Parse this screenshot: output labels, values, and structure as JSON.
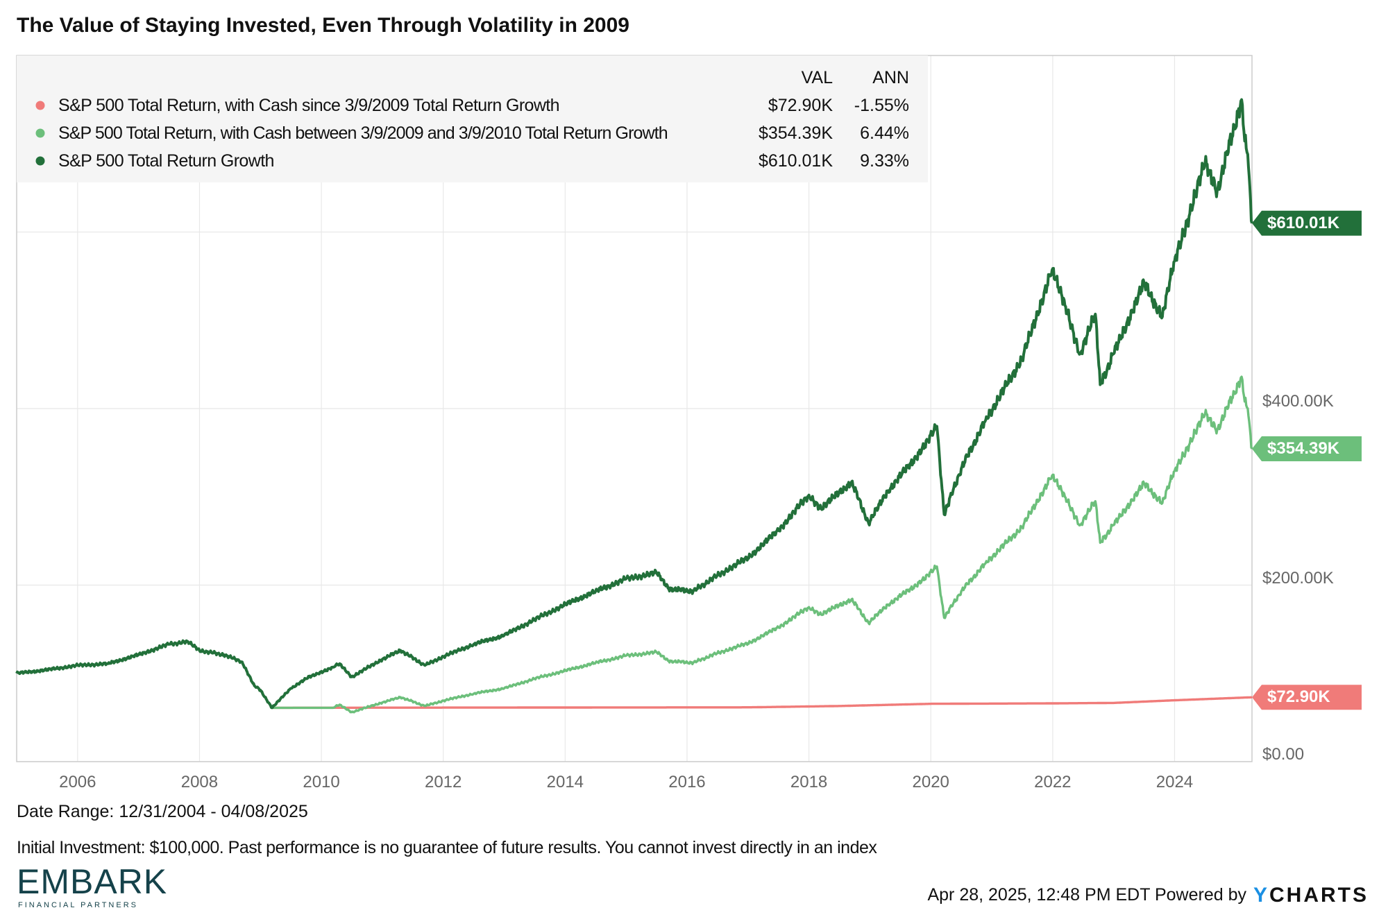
{
  "chart_data": {
    "type": "line",
    "title": "The Value of Staying Invested, Even Through Volatility in 2009",
    "legend": {
      "placement": "top-left",
      "columns": [
        "VAL",
        "ANN"
      ],
      "entries": [
        {
          "name": "S&P 500 Total Return, with Cash since 3/9/2009 Total Return Growth",
          "val": "$72.90K",
          "ann": "-1.55%",
          "color": "#f07b79"
        },
        {
          "name": "S&P 500 Total Return, with Cash between 3/9/2009 and 3/9/2010 Total Return Growth",
          "val": "$354.39K",
          "ann": "6.44%",
          "color": "#6cbf7b"
        },
        {
          "name": "S&P 500 Total Return Growth",
          "val": "$610.01K",
          "ann": "9.33%",
          "color": "#22703a"
        }
      ]
    },
    "x_ticks": [
      "2006",
      "2008",
      "2010",
      "2012",
      "2014",
      "2016",
      "2018",
      "2020",
      "2022",
      "2024"
    ],
    "y_ticks": [
      "$0.00",
      "$200.00K",
      "$400.00K"
    ],
    "xlim": [
      2005.0,
      2025.27
    ],
    "ylim": [
      0,
      800
    ],
    "y_unit": "thousands USD",
    "grid": true,
    "end_tags": [
      "$610.01K",
      "$354.39K",
      "$72.90K"
    ],
    "series": [
      {
        "name": "S&P 500 Total Return Growth",
        "color": "#22703a",
        "x": [
          2005.0,
          2005.5,
          2006.0,
          2006.5,
          2007.0,
          2007.5,
          2007.8,
          2008.0,
          2008.4,
          2008.7,
          2008.9,
          2009.0,
          2009.19,
          2009.5,
          2009.8,
          2010.19,
          2010.3,
          2010.5,
          2011.0,
          2011.3,
          2011.7,
          2012.0,
          2012.5,
          2013.0,
          2013.5,
          2014.0,
          2014.5,
          2015.0,
          2015.5,
          2015.7,
          2016.1,
          2016.5,
          2017.0,
          2017.5,
          2018.0,
          2018.2,
          2018.7,
          2018.98,
          2019.3,
          2019.9,
          2020.1,
          2020.22,
          2020.5,
          2020.9,
          2021.5,
          2021.99,
          2022.2,
          2022.45,
          2022.7,
          2022.78,
          2023.0,
          2023.5,
          2023.8,
          2024.0,
          2024.5,
          2024.7,
          2025.1,
          2025.15,
          2025.2,
          2025.27
        ],
        "y": [
          100,
          104,
          109,
          111,
          121,
          133,
          136,
          126,
          121,
          113,
          86,
          81,
          61,
          83,
          96,
          107,
          111,
          96,
          116,
          126,
          109,
          119,
          133,
          143,
          161,
          178,
          193,
          207,
          214,
          196,
          193,
          211,
          231,
          262,
          302,
          287,
          317,
          270,
          307,
          357,
          380,
          280,
          332,
          387,
          457,
          557,
          517,
          462,
          507,
          427,
          462,
          542,
          504,
          567,
          678,
          647,
          750,
          703,
          688,
          610.01
        ]
      },
      {
        "name": "S&P 500 Total Return, with Cash between 3/9/2009 and 3/9/2010 Total Return Growth",
        "color": "#6cbf7b",
        "x": [
          2005.0,
          2005.5,
          2006.0,
          2006.5,
          2007.0,
          2007.5,
          2007.8,
          2008.0,
          2008.4,
          2008.7,
          2008.9,
          2009.0,
          2009.19,
          2010.19,
          2010.3,
          2010.5,
          2011.0,
          2011.3,
          2011.7,
          2012.0,
          2012.5,
          2013.0,
          2013.5,
          2014.0,
          2014.5,
          2015.0,
          2015.5,
          2015.7,
          2016.1,
          2016.5,
          2017.0,
          2017.5,
          2018.0,
          2018.2,
          2018.7,
          2018.98,
          2019.3,
          2019.9,
          2020.1,
          2020.22,
          2020.5,
          2020.9,
          2021.5,
          2021.99,
          2022.2,
          2022.45,
          2022.7,
          2022.78,
          2023.0,
          2023.5,
          2023.8,
          2024.0,
          2024.5,
          2024.7,
          2025.1,
          2025.15,
          2025.2,
          2025.27
        ],
        "y": [
          100,
          104,
          109,
          111,
          121,
          133,
          136,
          126,
          121,
          113,
          86,
          81,
          61,
          61,
          64.5,
          56,
          67,
          73,
          63,
          69,
          77,
          83,
          94,
          103,
          112,
          120,
          124,
          114,
          112,
          123,
          134,
          152,
          175,
          167,
          184,
          157,
          178,
          207,
          221,
          163,
          193,
          225,
          266,
          324,
          300,
          268,
          295,
          248,
          268,
          315,
          293,
          329,
          394,
          376,
          436,
          408,
          400,
          354.39
        ]
      },
      {
        "name": "S&P 500 Total Return, with Cash since 3/9/2009 Total Return Growth",
        "color": "#f07b79",
        "x": [
          2005.0,
          2005.5,
          2006.0,
          2006.5,
          2007.0,
          2007.5,
          2007.8,
          2008.0,
          2008.4,
          2008.7,
          2008.9,
          2009.0,
          2009.19,
          2017.0,
          2018.5,
          2020.0,
          2022.0,
          2023.0,
          2024.0,
          2025.27
        ],
        "y": [
          100,
          104,
          109,
          111,
          121,
          133,
          136,
          126,
          121,
          113,
          86,
          81,
          61,
          61.5,
          63,
          65.5,
          66,
          66.5,
          69.5,
          72.9
        ]
      }
    ]
  },
  "footer": {
    "date_range": "Date Range: 12/31/2004 - 04/08/2025",
    "disclaimer": "Initial Investment: $100,000. Past performance is no guarantee of future results. You cannot invest directly in an index",
    "timestamp": "Apr 28, 2025, 12:48 PM EDT Powered by",
    "ycharts_logo": "YCHARTS",
    "embark_logo": "EMBARK",
    "embark_sub": "FINANCIAL PARTNERS"
  }
}
